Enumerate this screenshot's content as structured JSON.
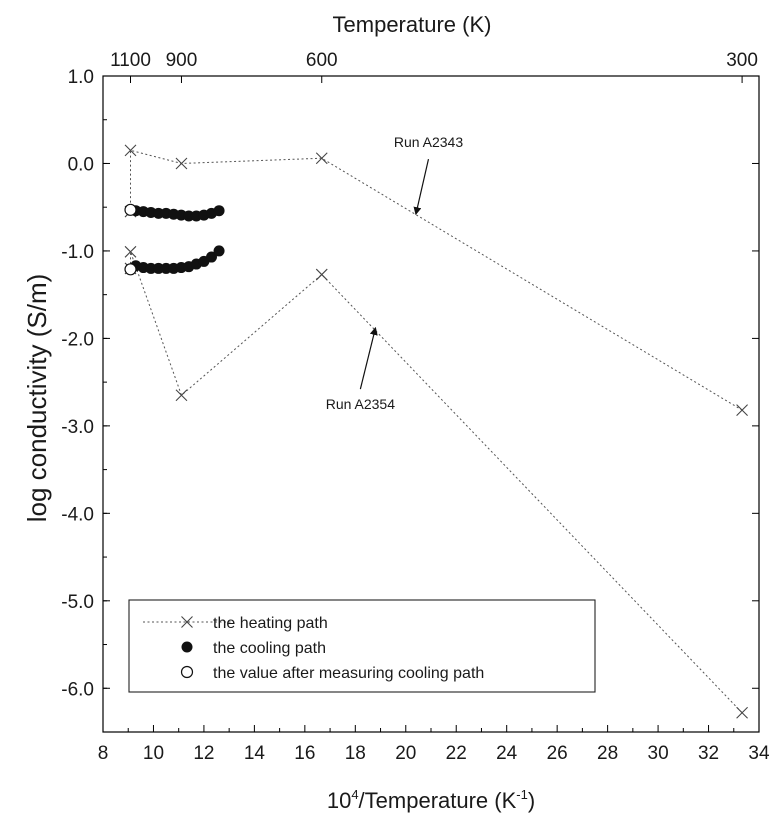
{
  "chart_data": {
    "type": "scatter",
    "xlabel_base": "10",
    "xlabel_exp": "4",
    "xlabel_mid": "/Temperature (K",
    "xlabel_exp2": "-1",
    "xlabel_end": ")",
    "ylabel": "log  conductivity (S/m)",
    "top_axis_title": "Temperature (K)",
    "xlim": [
      8,
      34
    ],
    "ylim": [
      -6.5,
      1.0
    ],
    "x_ticks": [
      8,
      10,
      12,
      14,
      16,
      18,
      20,
      22,
      24,
      26,
      28,
      30,
      32,
      34
    ],
    "y_ticks": [
      1.0,
      0.0,
      -1.0,
      -2.0,
      -3.0,
      -4.0,
      -5.0,
      -6.0
    ],
    "y_tick_labels": [
      "1.0",
      "0.0",
      "-1.0",
      "-2.0",
      "-3.0",
      "-4.0",
      "-5.0",
      "-6.0"
    ],
    "top_ticks": [
      {
        "label": "1100",
        "x": 9.09
      },
      {
        "label": "900",
        "x": 11.11
      },
      {
        "label": "600",
        "x": 16.67
      },
      {
        "label": "300",
        "x": 33.33
      }
    ],
    "series": [
      {
        "marker": "x",
        "role": "heating",
        "run": "Run A2343",
        "x": [
          9.09,
          9.09,
          11.11,
          16.67,
          33.33
        ],
        "y": [
          -0.55,
          0.15,
          0.0,
          0.06,
          -2.82
        ]
      },
      {
        "marker": "x",
        "role": "heating",
        "run": "Run A2354",
        "x": [
          9.09,
          9.09,
          11.11,
          16.67,
          33.33
        ],
        "y": [
          -1.2,
          -1.01,
          -2.65,
          -1.27,
          -6.28
        ]
      },
      {
        "marker": "filled-circle",
        "role": "cooling",
        "x": [
          9.3,
          9.6,
          9.9,
          10.2,
          10.5,
          10.8,
          11.1,
          11.4,
          11.7,
          12.0,
          12.3,
          12.6
        ],
        "y": [
          -0.54,
          -0.55,
          -0.56,
          -0.57,
          -0.57,
          -0.58,
          -0.59,
          -0.6,
          -0.6,
          -0.59,
          -0.57,
          -0.54
        ]
      },
      {
        "marker": "filled-circle",
        "role": "cooling",
        "x": [
          9.3,
          9.6,
          9.9,
          10.2,
          10.5,
          10.8,
          11.1,
          11.4,
          11.7,
          12.0,
          12.3,
          12.6
        ],
        "y": [
          -1.17,
          -1.19,
          -1.2,
          -1.2,
          -1.2,
          -1.2,
          -1.19,
          -1.18,
          -1.15,
          -1.12,
          -1.07,
          -1.0
        ]
      },
      {
        "marker": "open-circle",
        "role": "after-cooling",
        "x": [
          9.09,
          9.09
        ],
        "y": [
          -0.53,
          -1.21
        ]
      }
    ],
    "annotations": [
      {
        "text": "Run A2343",
        "arrow_from": [
          20.9,
          0.05
        ],
        "arrow_to": [
          20.4,
          -0.58
        ]
      },
      {
        "text": "Run A2354",
        "arrow_from": [
          18.2,
          -2.58
        ],
        "arrow_to": [
          18.8,
          -1.88
        ]
      }
    ],
    "legend": {
      "placement": "bottom-left",
      "entries": [
        {
          "marker": "x",
          "label": "the heating path"
        },
        {
          "marker": "filled-circle",
          "label": "the cooling path"
        },
        {
          "marker": "open-circle",
          "label": "the value after measuring cooling path"
        }
      ]
    },
    "grid": false
  }
}
